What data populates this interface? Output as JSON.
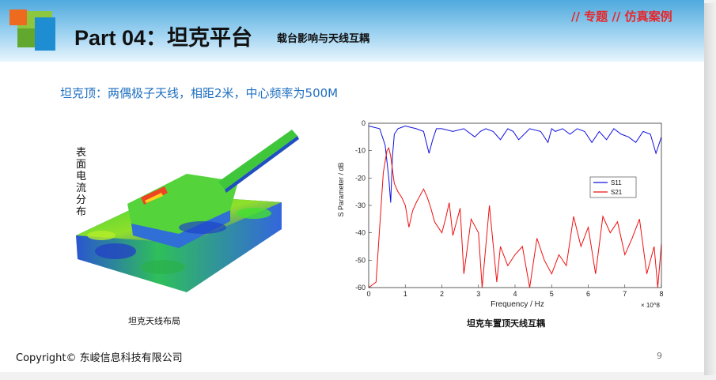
{
  "header": {
    "title": "Part 04：坦克平台",
    "subtitle": "载台影响与天线互耦",
    "tag": "// 专题 // 仿真案例"
  },
  "main": {
    "description": "坦克顶：两偶极子天线，相距2米，中心频率为500M",
    "left_figure": {
      "vertical_label": "表面电流分布",
      "caption": "坦克天线布局"
    },
    "right_figure": {
      "caption": "坦克车置顶天线互耦"
    }
  },
  "footer": {
    "copyright": "Copyright© 东峻信息科技有限公司",
    "page_number": "9"
  },
  "colors": {
    "header_blue": "#4fa9dd",
    "tag_red": "#e8262a",
    "desc_blue": "#1f6fc1",
    "s11": "#1010e0",
    "s21": "#ee1010"
  },
  "chart_data": {
    "type": "line",
    "xlabel": "Frequency / Hz",
    "x_multiplier": "× 10^8",
    "ylabel": "S Parameter / dB",
    "xlim": [
      0,
      8
    ],
    "ylim": [
      -60,
      0
    ],
    "xticks": [
      "0",
      "1",
      "2",
      "3",
      "4",
      "5",
      "6",
      "7",
      "8"
    ],
    "yticks": [
      "0",
      "-10",
      "-20",
      "-30",
      "-40",
      "-50",
      "-60"
    ],
    "legend_position": "right",
    "grid": false,
    "series": [
      {
        "name": "S11",
        "color": "#1010e0",
        "x": [
          0,
          0.3,
          0.45,
          0.55,
          0.6,
          0.65,
          0.7,
          0.8,
          1.0,
          1.3,
          1.5,
          1.65,
          1.75,
          1.85,
          2.0,
          2.3,
          2.6,
          2.9,
          3.05,
          3.2,
          3.4,
          3.6,
          3.8,
          3.95,
          4.1,
          4.4,
          4.7,
          4.9,
          5.0,
          5.1,
          5.3,
          5.5,
          5.7,
          5.9,
          6.1,
          6.3,
          6.5,
          6.7,
          6.9,
          7.1,
          7.3,
          7.5,
          7.7,
          7.85,
          8.0
        ],
        "y": [
          -1,
          -2,
          -8,
          -20,
          -29,
          -12,
          -4,
          -2,
          -1,
          -2,
          -3,
          -11,
          -6,
          -2,
          -2,
          -3,
          -2,
          -5,
          -3,
          -2,
          -3,
          -6,
          -2,
          -3,
          -6,
          -2,
          -3,
          -7,
          -2,
          -3,
          -2,
          -4,
          -2,
          -3,
          -7,
          -3,
          -6,
          -2,
          -4,
          -5,
          -7,
          -3,
          -4,
          -11,
          -5
        ]
      },
      {
        "name": "S21",
        "color": "#ee1010",
        "x": [
          0,
          0.2,
          0.3,
          0.4,
          0.5,
          0.55,
          0.6,
          0.7,
          0.8,
          0.9,
          1.0,
          1.1,
          1.2,
          1.3,
          1.5,
          1.6,
          1.7,
          1.8,
          2.0,
          2.1,
          2.2,
          2.3,
          2.5,
          2.6,
          2.8,
          3.0,
          3.1,
          3.2,
          3.3,
          3.5,
          3.6,
          3.8,
          4.0,
          4.2,
          4.4,
          4.6,
          4.8,
          5.0,
          5.2,
          5.4,
          5.6,
          5.8,
          6.0,
          6.2,
          6.4,
          6.6,
          6.8,
          7.0,
          7.2,
          7.4,
          7.6,
          7.8,
          7.9,
          8.0
        ],
        "y": [
          -60,
          -58,
          -38,
          -18,
          -10,
          -9,
          -12,
          -22,
          -25,
          -27,
          -30,
          -38,
          -32,
          -29,
          -24,
          -27,
          -31,
          -36,
          -40,
          -35,
          -29,
          -41,
          -31,
          -55,
          -35,
          -40,
          -60,
          -45,
          -30,
          -58,
          -45,
          -52,
          -48,
          -45,
          -60,
          -42,
          -50,
          -55,
          -48,
          -52,
          -34,
          -45,
          -38,
          -55,
          -34,
          -40,
          -36,
          -48,
          -42,
          -35,
          -55,
          -45,
          -60,
          -44
        ]
      }
    ]
  }
}
